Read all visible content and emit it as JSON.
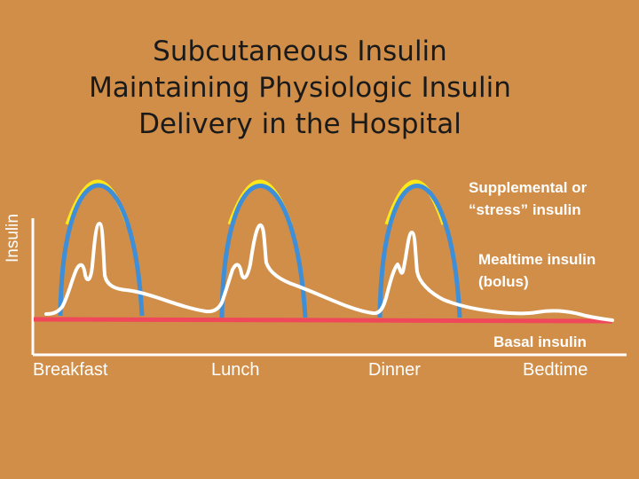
{
  "title": {
    "lines": [
      "Subcutaneous Insulin",
      "Maintaining Physiologic Insulin",
      "Delivery in the Hospital"
    ]
  },
  "axis": {
    "ylabel": "Insulin",
    "xlabels": [
      "Breakfast",
      "Lunch",
      "Dinner",
      "Bedtime"
    ]
  },
  "legend": {
    "supplemental": [
      "Supplemental or",
      "“stress” insulin"
    ],
    "mealtime": [
      "Mealtime insulin",
      "(bolus)"
    ],
    "basal": "Basal insulin"
  },
  "colors": {
    "background": "#D08E48",
    "supplemental": "#FFE81A",
    "mealtime": "#3F8FD8",
    "basal": "#F0475A",
    "physiologic": "#FFFFFF",
    "axis": "#FFFFFF"
  }
}
